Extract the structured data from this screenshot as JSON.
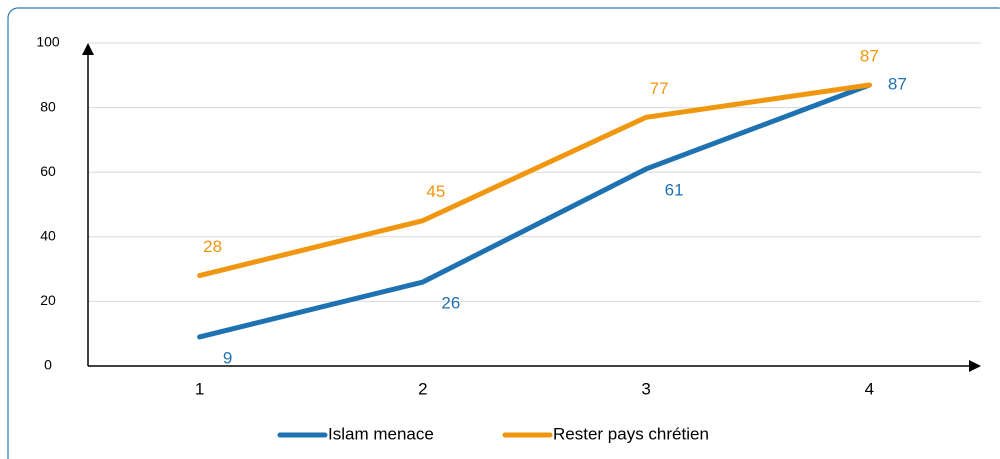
{
  "chart_data": {
    "type": "line",
    "x": [
      1,
      2,
      3,
      4
    ],
    "xlim": [
      0.5,
      4.5
    ],
    "xticks": [
      1,
      2,
      3,
      4
    ],
    "ylim": [
      0,
      100
    ],
    "yticks": [
      0,
      20,
      40,
      60,
      80,
      100
    ],
    "grid": true,
    "legend": "bottom",
    "series": [
      {
        "name": "Islam menace",
        "color": "#1f72b2",
        "values": [
          9,
          26,
          61,
          87
        ]
      },
      {
        "name": "Rester pays chrétien",
        "color": "#f0960f",
        "values": [
          28,
          45,
          77,
          87
        ]
      }
    ]
  }
}
